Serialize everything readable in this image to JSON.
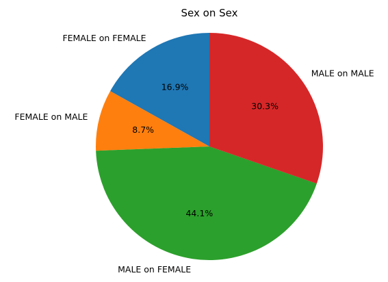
{
  "chart_data": {
    "type": "pie",
    "title": "Sex on Sex",
    "categories": [
      "FEMALE on FEMALE",
      "FEMALE on MALE",
      "MALE on FEMALE",
      "MALE on MALE"
    ],
    "values": [
      16.9,
      8.7,
      44.1,
      30.3
    ],
    "value_labels": [
      "16.9%",
      "8.7%",
      "44.1%",
      "30.3%"
    ],
    "colors": [
      "#1f77b4",
      "#ff7f0e",
      "#2ca02c",
      "#d62728"
    ],
    "start_angle_deg": 90,
    "direction": "counterclockwise",
    "legend": "none"
  }
}
